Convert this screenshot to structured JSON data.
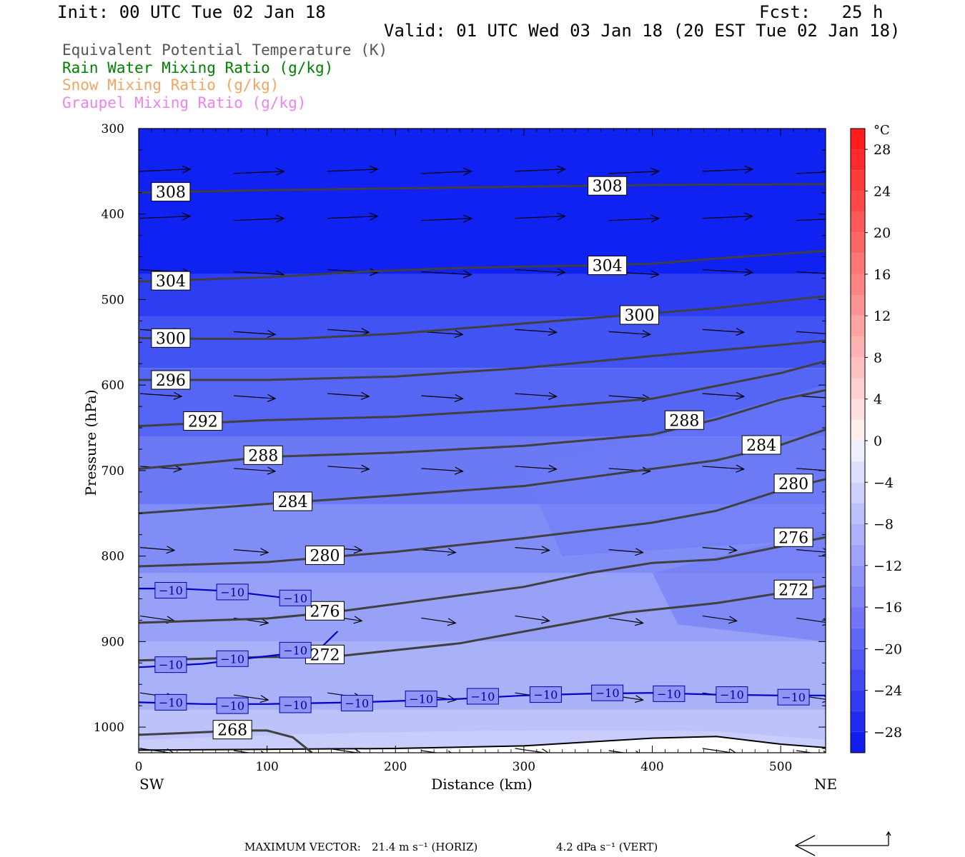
{
  "header": {
    "init": "Init: 00 UTC Tue 02 Jan 18",
    "fcst": "Fcst:   25 h",
    "valid": "Valid: 01 UTC Wed 03 Jan 18 (20 EST Tue 02 Jan 18)"
  },
  "legend": [
    {
      "text": "Equivalent Potential Temperature (K)",
      "color": "#555555"
    },
    {
      "text": "Rain Water Mixing Ratio (g/kg)",
      "color": "#008000"
    },
    {
      "text": "Snow Mixing Ratio (g/kg)",
      "color": "#f4a460"
    },
    {
      "text": "Graupel Mixing Ratio (g/kg)",
      "color": "#ee82ee"
    }
  ],
  "chart_data": {
    "type": "contour-cross-section",
    "xlabel": "Distance (km)",
    "ylabel": "Pressure (hPa)",
    "xlim": [
      0,
      535
    ],
    "ylim": [
      1030,
      300
    ],
    "xticks": [
      0,
      100,
      200,
      300,
      400,
      500
    ],
    "yticks": [
      300,
      400,
      500,
      600,
      700,
      800,
      900,
      1000
    ],
    "x_left_label": "SW",
    "x_right_label": "NE",
    "colorbar": {
      "unit": "°C",
      "tick_labels": [
        28,
        24,
        20,
        16,
        12,
        8,
        4,
        0,
        -4,
        -8,
        -12,
        -16,
        -20,
        -24,
        -28
      ],
      "levels": [
        -30,
        -28,
        -26,
        -24,
        -22,
        -20,
        -18,
        -16,
        -14,
        -12,
        -10,
        -8,
        -6,
        -4,
        -2,
        0,
        2,
        4,
        6,
        8,
        10,
        12,
        14,
        16,
        18,
        20,
        22,
        24,
        26,
        28,
        30
      ]
    },
    "theta_e_contours": [
      {
        "value": 308,
        "points": [
          [
            0,
            375
          ],
          [
            100,
            372
          ],
          [
            200,
            370
          ],
          [
            300,
            368
          ],
          [
            400,
            366
          ],
          [
            535,
            365
          ]
        ],
        "labels": [
          [
            25,
            374
          ],
          [
            365,
            367
          ]
        ]
      },
      {
        "value": 304,
        "points": [
          [
            0,
            479
          ],
          [
            100,
            474
          ],
          [
            180,
            467
          ],
          [
            250,
            463
          ],
          [
            350,
            460
          ],
          [
            400,
            458
          ],
          [
            450,
            452
          ],
          [
            535,
            443
          ]
        ],
        "labels": [
          [
            25,
            478
          ],
          [
            365,
            460
          ]
        ]
      },
      {
        "value": 300,
        "points": [
          [
            0,
            545
          ],
          [
            50,
            546
          ],
          [
            120,
            546
          ],
          [
            200,
            540
          ],
          [
            300,
            528
          ],
          [
            400,
            516
          ],
          [
            450,
            510
          ],
          [
            535,
            496
          ]
        ],
        "labels": [
          [
            25,
            545
          ],
          [
            390,
            518
          ]
        ]
      },
      {
        "value": 296,
        "points": [
          [
            0,
            594
          ],
          [
            100,
            594
          ],
          [
            200,
            590
          ],
          [
            300,
            580
          ],
          [
            400,
            566
          ],
          [
            500,
            553
          ],
          [
            535,
            548
          ]
        ],
        "labels": [
          [
            25,
            594
          ]
        ]
      },
      {
        "value": 292,
        "points": [
          [
            0,
            648
          ],
          [
            100,
            641
          ],
          [
            200,
            637
          ],
          [
            300,
            628
          ],
          [
            400,
            616
          ],
          [
            500,
            586
          ],
          [
            535,
            572
          ]
        ],
        "labels": [
          [
            50,
            642
          ]
        ]
      },
      {
        "value": 288,
        "points": [
          [
            0,
            698
          ],
          [
            100,
            684
          ],
          [
            200,
            679
          ],
          [
            300,
            671
          ],
          [
            400,
            658
          ],
          [
            450,
            640
          ],
          [
            500,
            617
          ],
          [
            535,
            606
          ]
        ],
        "labels": [
          [
            97,
            682
          ],
          [
            425,
            641
          ]
        ]
      },
      {
        "value": 284,
        "points": [
          [
            0,
            750
          ],
          [
            100,
            739
          ],
          [
            200,
            729
          ],
          [
            300,
            718
          ],
          [
            400,
            698
          ],
          [
            450,
            688
          ],
          [
            500,
            670
          ],
          [
            535,
            652
          ]
        ],
        "labels": [
          [
            120,
            736
          ],
          [
            485,
            670
          ]
        ]
      },
      {
        "value": 280,
        "points": [
          [
            0,
            812
          ],
          [
            100,
            807
          ],
          [
            200,
            795
          ],
          [
            300,
            779
          ],
          [
            400,
            761
          ],
          [
            450,
            747
          ],
          [
            500,
            723
          ],
          [
            535,
            710
          ]
        ],
        "labels": [
          [
            145,
            799
          ],
          [
            510,
            715
          ]
        ]
      },
      {
        "value": 276,
        "points": [
          [
            0,
            878
          ],
          [
            100,
            873
          ],
          [
            150,
            866
          ],
          [
            200,
            856
          ],
          [
            300,
            836
          ],
          [
            350,
            820
          ],
          [
            400,
            808
          ],
          [
            450,
            804
          ],
          [
            535,
            778
          ]
        ],
        "labels": [
          [
            145,
            864
          ],
          [
            510,
            778
          ]
        ]
      },
      {
        "value": 272,
        "points": [
          [
            0,
            922
          ],
          [
            100,
            918
          ],
          [
            150,
            918
          ],
          [
            250,
            902
          ],
          [
            330,
            880
          ],
          [
            380,
            866
          ],
          [
            450,
            855
          ],
          [
            535,
            835
          ]
        ],
        "labels": [
          [
            145,
            915
          ],
          [
            510,
            839
          ]
        ]
      },
      {
        "value": 268,
        "points": [
          [
            0,
            1009
          ],
          [
            50,
            1006
          ],
          [
            80,
            1004
          ],
          [
            100,
            1004
          ],
          [
            120,
            1012
          ],
          [
            135,
            1030
          ]
        ],
        "labels": [
          [
            73,
            1003
          ]
        ]
      }
    ],
    "temperature_contours": [
      {
        "value": -10,
        "points": [
          [
            0,
            838
          ],
          [
            30,
            838
          ],
          [
            70,
            841
          ],
          [
            120,
            850
          ],
          [
            145,
            857
          ]
        ],
        "labels": [
          [
            25,
            840
          ],
          [
            73,
            842
          ],
          [
            122,
            849
          ]
        ]
      },
      {
        "value": -10,
        "points": [
          [
            0,
            930
          ],
          [
            50,
            926
          ],
          [
            100,
            917
          ],
          [
            140,
            910
          ],
          [
            155,
            888
          ]
        ],
        "labels": [
          [
            25,
            927
          ],
          [
            73,
            920
          ],
          [
            122,
            910
          ]
        ]
      },
      {
        "value": -10,
        "points": [
          [
            0,
            971
          ],
          [
            50,
            973
          ],
          [
            100,
            973
          ],
          [
            170,
            971
          ],
          [
            250,
            967
          ],
          [
            300,
            963
          ],
          [
            350,
            961
          ],
          [
            400,
            960
          ],
          [
            450,
            962
          ],
          [
            500,
            963
          ],
          [
            535,
            963
          ]
        ],
        "labels": [
          [
            25,
            971
          ],
          [
            73,
            975
          ],
          [
            122,
            974
          ],
          [
            170,
            972
          ],
          [
            220,
            967
          ],
          [
            268,
            964
          ],
          [
            317,
            962
          ],
          [
            365,
            960
          ],
          [
            413,
            961
          ],
          [
            462,
            962
          ],
          [
            510,
            965
          ]
        ]
      }
    ],
    "max_vector": {
      "horiz_label": "MAXIMUM VECTOR:",
      "horiz_value": "21.4 m s⁻¹ (HORIZ)",
      "vert_value": "4.2 dPa s⁻¹ (VERT)"
    }
  }
}
